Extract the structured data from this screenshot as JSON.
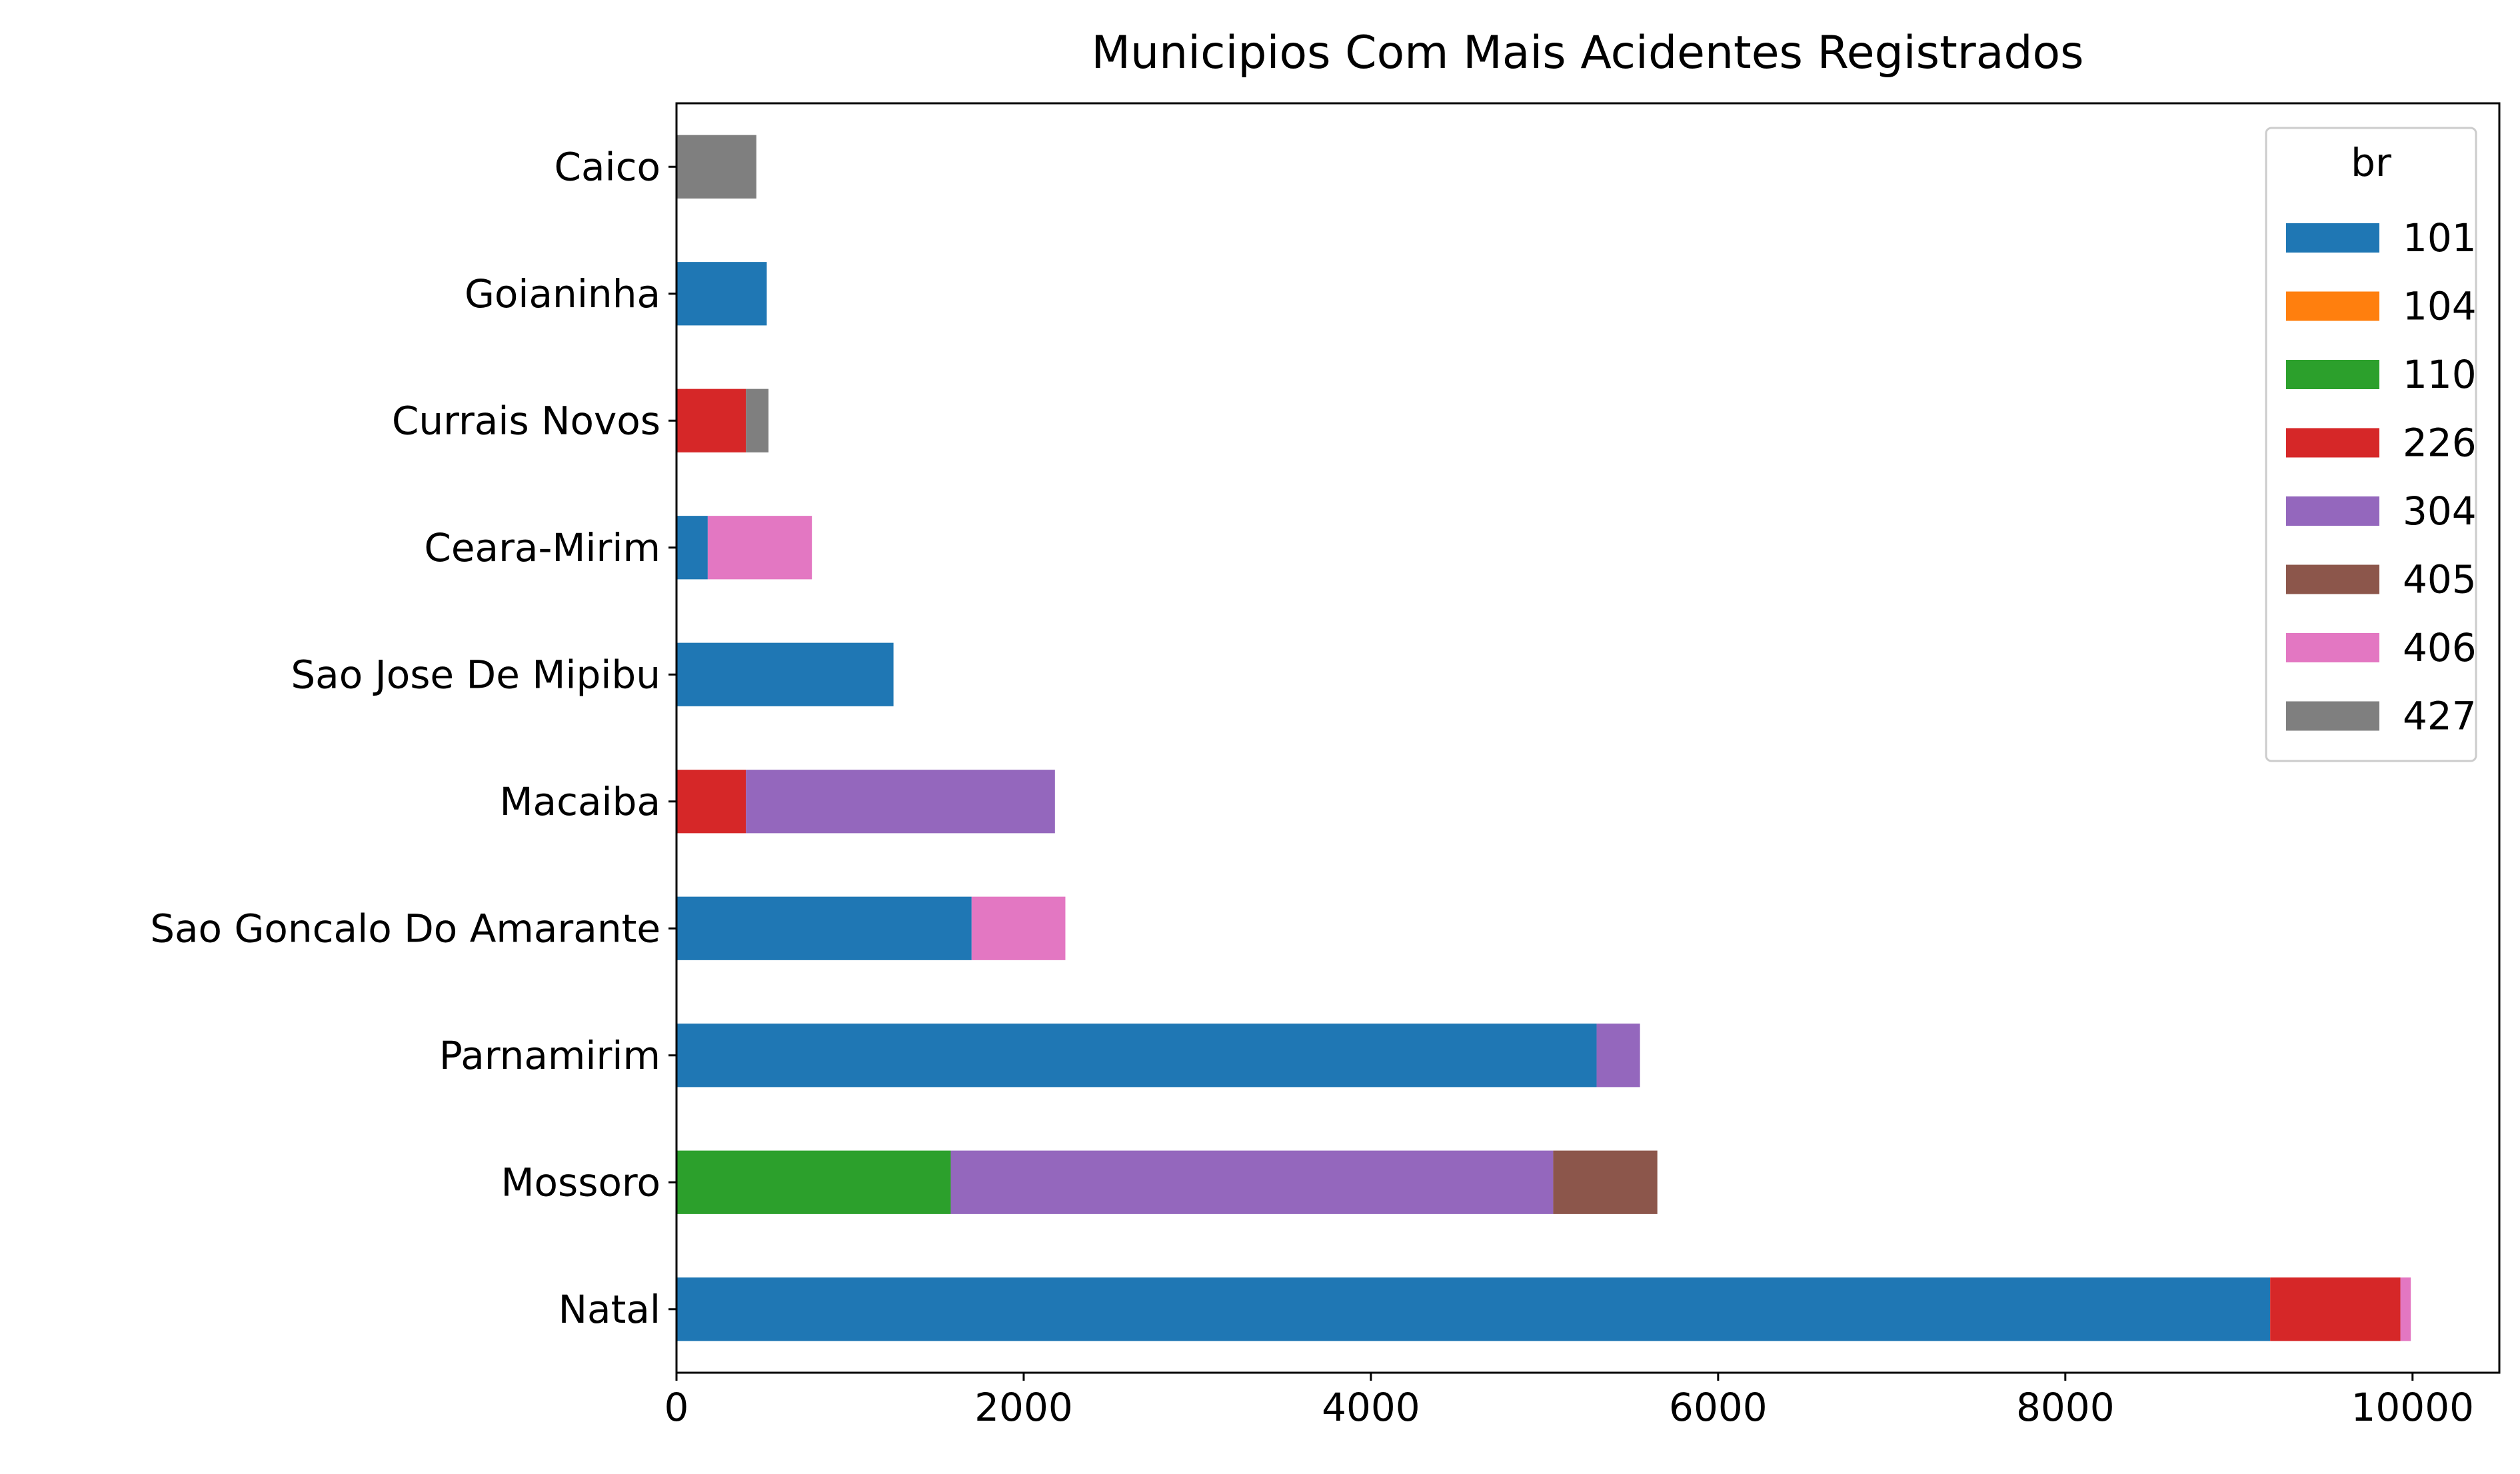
{
  "chart_data": {
    "type": "bar",
    "orientation": "horizontal",
    "stacked": true,
    "title": "Municipios Com Mais Acidentes Registrados",
    "xlabel": "",
    "ylabel": "",
    "xlim": [
      0,
      10500
    ],
    "xticks": [
      0,
      2000,
      4000,
      6000,
      8000,
      10000
    ],
    "xtick_labels": [
      "0",
      "2000",
      "4000",
      "6000",
      "8000",
      "10000"
    ],
    "grid": false,
    "legend": {
      "title": "br",
      "position": "top-right"
    },
    "categories": [
      "Natal",
      "Mossoro",
      "Parnamirim",
      "Sao Goncalo Do Amarante",
      "Macaiba",
      "Sao Jose De Mipibu",
      "Ceara-Mirim",
      "Currais Novos",
      "Goianinha",
      "Caico"
    ],
    "series": [
      {
        "name": "101",
        "color": "#1f77b4",
        "values": [
          9180,
          0,
          5300,
          1700,
          0,
          1250,
          180,
          0,
          520,
          0
        ]
      },
      {
        "name": "104",
        "color": "#ff7f0e",
        "values": [
          0,
          0,
          0,
          0,
          0,
          0,
          0,
          0,
          0,
          0
        ]
      },
      {
        "name": "110",
        "color": "#2ca02c",
        "values": [
          0,
          1580,
          0,
          0,
          0,
          0,
          0,
          0,
          0,
          0
        ]
      },
      {
        "name": "226",
        "color": "#d62728",
        "values": [
          750,
          0,
          0,
          0,
          400,
          0,
          0,
          400,
          0,
          0
        ]
      },
      {
        "name": "304",
        "color": "#9467bd",
        "values": [
          0,
          3470,
          250,
          0,
          1780,
          0,
          0,
          0,
          0,
          0
        ]
      },
      {
        "name": "405",
        "color": "#8c564b",
        "values": [
          0,
          600,
          0,
          0,
          0,
          0,
          0,
          0,
          0,
          0
        ]
      },
      {
        "name": "406",
        "color": "#e377c2",
        "values": [
          60,
          0,
          0,
          540,
          0,
          0,
          600,
          0,
          0,
          0
        ]
      },
      {
        "name": "427",
        "color": "#7f7f7f",
        "values": [
          0,
          0,
          0,
          0,
          0,
          0,
          0,
          130,
          0,
          460
        ]
      }
    ]
  }
}
